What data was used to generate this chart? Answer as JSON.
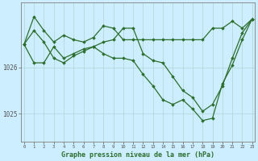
{
  "title": "Graphe pression niveau de la mer (hPa)",
  "bg_color": "#cceeff",
  "grid_color": "#b0d4d4",
  "line_color": "#2d6e2d",
  "marker_color": "#2d6e2d",
  "ylabel_ticks": [
    1025,
    1026
  ],
  "x_labels": [
    "0",
    "1",
    "2",
    "3",
    "4",
    "5",
    "6",
    "7",
    "8",
    "9",
    "10",
    "11",
    "12",
    "13",
    "14",
    "15",
    "16",
    "17",
    "18",
    "19",
    "20",
    "21",
    "22",
    "23"
  ],
  "series": [
    [
      1026.5,
      1027.1,
      1026.8,
      1026.55,
      1026.7,
      1026.6,
      1026.55,
      1026.65,
      1026.9,
      1026.85,
      1026.6,
      1026.6,
      1026.6,
      1026.6,
      1026.6,
      1026.6,
      1026.6,
      1026.6,
      1026.6,
      1026.85,
      1026.85,
      1027.0,
      1026.85,
      1027.05
    ],
    [
      1026.5,
      1026.8,
      1026.55,
      1026.2,
      1026.1,
      1026.25,
      1026.35,
      1026.45,
      1026.55,
      1026.6,
      1026.85,
      1026.85,
      1026.3,
      1026.15,
      1026.1,
      1025.8,
      1025.5,
      1025.35,
      1025.05,
      1025.2,
      1025.6,
      1026.2,
      1026.75,
      1027.05
    ],
    [
      1026.5,
      1026.1,
      1026.1,
      1026.45,
      1026.2,
      1026.3,
      1026.4,
      1026.45,
      1026.3,
      1026.2,
      1026.2,
      1026.15,
      1025.85,
      1025.6,
      1025.3,
      1025.2,
      1025.3,
      1025.1,
      1024.85,
      1024.9,
      1025.65,
      1026.05,
      1026.6,
      1027.05
    ]
  ],
  "ylim": [
    1024.4,
    1027.4
  ],
  "xlim": [
    -0.3,
    23.3
  ],
  "figsize": [
    3.2,
    2.0
  ],
  "dpi": 100
}
